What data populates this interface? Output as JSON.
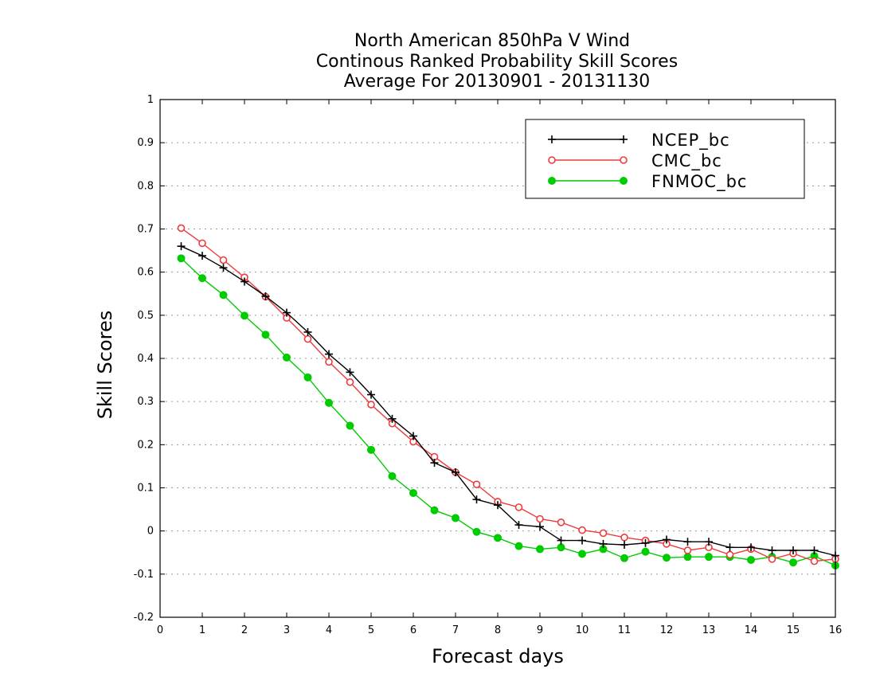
{
  "chart_data": {
    "type": "line",
    "title_lines": [
      "North American 850hPa V Wind",
      "Continous Ranked Probability Skill Scores",
      "Average For 20130901 - 20131130"
    ],
    "xlabel": "Forecast days",
    "ylabel": "Skill Scores",
    "xlim": [
      0,
      16
    ],
    "ylim": [
      -0.2,
      1
    ],
    "x_ticks": [
      0,
      1,
      2,
      3,
      4,
      5,
      6,
      7,
      8,
      9,
      10,
      11,
      12,
      13,
      14,
      15,
      16
    ],
    "x_tick_labels": [
      "0",
      "1",
      "2",
      "3",
      "4",
      "5",
      "6",
      "7",
      "8",
      "9",
      "10",
      "11",
      "12",
      "13",
      "14",
      "15",
      "16"
    ],
    "y_ticks": [
      -0.2,
      -0.1,
      0,
      0.1,
      0.2,
      0.3,
      0.4,
      0.5,
      0.6,
      0.7,
      0.8,
      0.9,
      1
    ],
    "y_tick_labels": [
      "-0.2",
      "-0.1",
      "0",
      "0.1",
      "0.2",
      "0.3",
      "0.4",
      "0.5",
      "0.6",
      "0.7",
      "0.8",
      "0.9",
      "1"
    ],
    "grid": "horizontal dotted",
    "legend_position": "top-right",
    "x": [
      0.5,
      1,
      1.5,
      2,
      2.5,
      3,
      3.5,
      4,
      4.5,
      5,
      5.5,
      6,
      6.5,
      7,
      7.5,
      8,
      8.5,
      9,
      9.5,
      10,
      10.5,
      11,
      11.5,
      12,
      12.5,
      13,
      13.5,
      14,
      14.5,
      15,
      15.5,
      16
    ],
    "series": [
      {
        "name": "NCEP_bc",
        "color": "#000000",
        "marker": "plus",
        "values": [
          0.66,
          0.638,
          0.61,
          0.578,
          0.544,
          0.506,
          0.461,
          0.41,
          0.368,
          0.316,
          0.26,
          0.22,
          0.158,
          0.136,
          0.073,
          0.06,
          0.014,
          0.01,
          -0.022,
          -0.022,
          -0.03,
          -0.032,
          -0.028,
          -0.02,
          -0.025,
          -0.025,
          -0.038,
          -0.038,
          -0.045,
          -0.045,
          -0.045,
          -0.057
        ]
      },
      {
        "name": "CMC_bc",
        "color": "#ee3b3b",
        "marker": "open-circle",
        "values": [
          0.702,
          0.667,
          0.628,
          0.588,
          0.543,
          0.494,
          0.445,
          0.392,
          0.345,
          0.293,
          0.249,
          0.207,
          0.172,
          0.136,
          0.108,
          0.068,
          0.055,
          0.028,
          0.02,
          0.002,
          -0.005,
          -0.015,
          -0.022,
          -0.03,
          -0.045,
          -0.038,
          -0.055,
          -0.042,
          -0.065,
          -0.052,
          -0.07,
          -0.065
        ]
      },
      {
        "name": "FNMOC_bc",
        "color": "#00cc00",
        "marker": "filled-circle",
        "values": [
          0.632,
          0.586,
          0.547,
          0.499,
          0.455,
          0.402,
          0.356,
          0.297,
          0.244,
          0.188,
          0.127,
          0.088,
          0.048,
          0.03,
          -0.002,
          -0.016,
          -0.035,
          -0.042,
          -0.038,
          -0.053,
          -0.042,
          -0.063,
          -0.048,
          -0.062,
          -0.06,
          -0.06,
          -0.06,
          -0.067,
          -0.06,
          -0.073,
          -0.058,
          -0.08
        ]
      }
    ]
  }
}
